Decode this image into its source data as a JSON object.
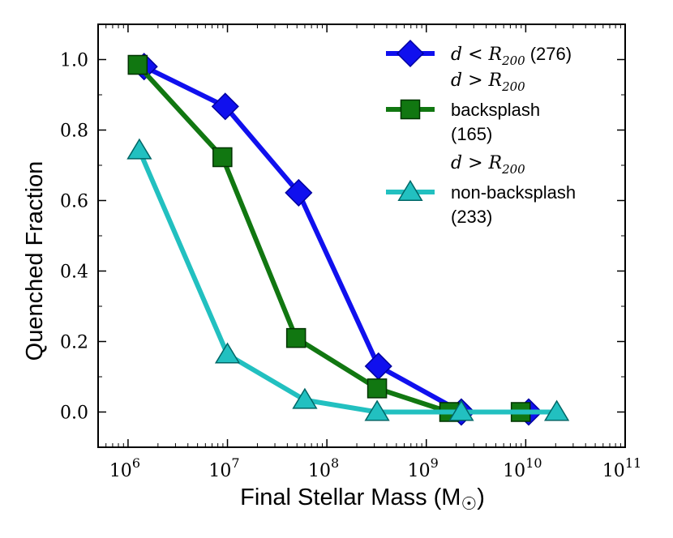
{
  "chart_data": {
    "type": "line",
    "xlabel": "Final Stellar Mass (M",
    "xlabel_sub": "☉",
    "xlabel_close": ")",
    "ylabel": "Quenched Fraction",
    "x_scale": "log",
    "xlim": [
      500000,
      100000000000
    ],
    "ylim": [
      -0.1,
      1.1
    ],
    "x_ticks": [
      {
        "value": 1000000,
        "base": "10",
        "exp": "6"
      },
      {
        "value": 10000000,
        "base": "10",
        "exp": "7"
      },
      {
        "value": 100000000,
        "base": "10",
        "exp": "8"
      },
      {
        "value": 1000000000,
        "base": "10",
        "exp": "9"
      },
      {
        "value": 10000000000,
        "base": "10",
        "exp": "10"
      },
      {
        "value": 100000000000,
        "base": "10",
        "exp": "11"
      }
    ],
    "y_ticks": [
      {
        "value": 0.0,
        "label": "0.0"
      },
      {
        "value": 0.2,
        "label": "0.2"
      },
      {
        "value": 0.4,
        "label": "0.4"
      },
      {
        "value": 0.6,
        "label": "0.6"
      },
      {
        "value": 0.8,
        "label": "0.8"
      },
      {
        "value": 1.0,
        "label": "1.0"
      }
    ],
    "grid": false,
    "legend_position": "top-right",
    "series": [
      {
        "key": "inside",
        "color": "#1010ee",
        "edge": "#0000a0",
        "marker": "diamond",
        "legend_lines": [
          "d < R200 (276)"
        ],
        "legend_math": "d < R",
        "legend_math_sub": "200",
        "legend_text": "(276)",
        "x": [
          1450000,
          9500000,
          52000000,
          330000000,
          2250000000,
          10700000000
        ],
        "y": [
          0.98,
          0.867,
          0.622,
          0.13,
          0.0,
          0.0
        ]
      },
      {
        "key": "backsplash",
        "color": "#117711",
        "edge": "#003300",
        "marker": "square",
        "legend_math": "d > R",
        "legend_math_sub": "200",
        "legend_lines": [
          "backsplash",
          "(165)"
        ],
        "x": [
          1250000,
          8900000,
          49000000,
          320000000,
          1700000000,
          8900000000
        ],
        "y": [
          0.985,
          0.723,
          0.21,
          0.067,
          0.0,
          0.0
        ]
      },
      {
        "key": "non-backsplash",
        "color": "#22c0c0",
        "edge": "#006666",
        "marker": "triangle",
        "legend_math": "d > R",
        "legend_math_sub": "200",
        "legend_lines": [
          "non-backsplash",
          "(233)"
        ],
        "x": [
          1300000,
          10000000,
          60000000,
          320000000,
          2250000000,
          20500000000
        ],
        "y": [
          0.742,
          0.163,
          0.034,
          0.0,
          0.0,
          0.0
        ]
      }
    ]
  }
}
